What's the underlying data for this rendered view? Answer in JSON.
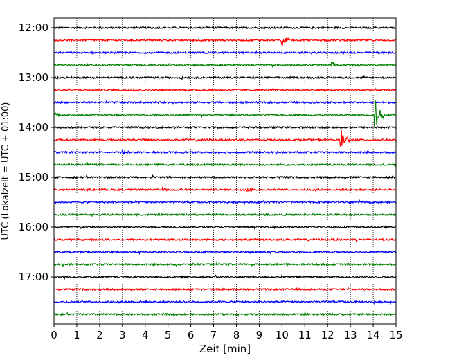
{
  "chart_data": {
    "type": "line",
    "title": "",
    "xlabel": "Zeit  [min]",
    "ylabel": "UTC (Lokalzeit = UTC + 01:00)",
    "xlim": [
      0,
      15
    ],
    "x_ticks": [
      "0",
      "1",
      "2",
      "3",
      "4",
      "5",
      "6",
      "7",
      "8",
      "9",
      "10",
      "11",
      "12",
      "13",
      "14",
      "15"
    ],
    "y_ticks": [
      "12:00",
      "13:00",
      "14:00",
      "15:00",
      "16:00",
      "17:00"
    ],
    "grid": "vertical dotted",
    "trace_interval_min": 15,
    "trace_color_cycle": [
      "#000000",
      "#ff0000",
      "#0000ff",
      "#008000"
    ],
    "series": [
      {
        "start": "12:00"
      },
      {
        "start": "12:15"
      },
      {
        "start": "12:30"
      },
      {
        "start": "12:45"
      },
      {
        "start": "13:00"
      },
      {
        "start": "13:15"
      },
      {
        "start": "13:30"
      },
      {
        "start": "13:45"
      },
      {
        "start": "14:00"
      },
      {
        "start": "14:15"
      },
      {
        "start": "14:30"
      },
      {
        "start": "14:45"
      },
      {
        "start": "15:00"
      },
      {
        "start": "15:15"
      },
      {
        "start": "15:30"
      },
      {
        "start": "15:45"
      },
      {
        "start": "16:00"
      },
      {
        "start": "16:15"
      },
      {
        "start": "16:30"
      },
      {
        "start": "16:45"
      },
      {
        "start": "17:00"
      },
      {
        "start": "17:15"
      },
      {
        "start": "17:30"
      },
      {
        "start": "17:45"
      }
    ],
    "events": [
      {
        "trace_start": "12:15",
        "x_min": 10.0,
        "amplitude": 0.9
      },
      {
        "trace_start": "12:45",
        "x_min": 12.2,
        "amplitude": 0.5
      },
      {
        "trace_start": "13:45",
        "x_min": 14.1,
        "amplitude": 2.2
      },
      {
        "trace_start": "14:15",
        "x_min": 12.6,
        "amplitude": 1.6
      },
      {
        "trace_start": "14:30",
        "x_min": 3.0,
        "amplitude": 0.35
      },
      {
        "trace_start": "15:15",
        "x_min": 4.8,
        "amplitude": 0.35
      },
      {
        "trace_start": "15:15",
        "x_min": 8.5,
        "amplitude": 0.3
      }
    ]
  }
}
